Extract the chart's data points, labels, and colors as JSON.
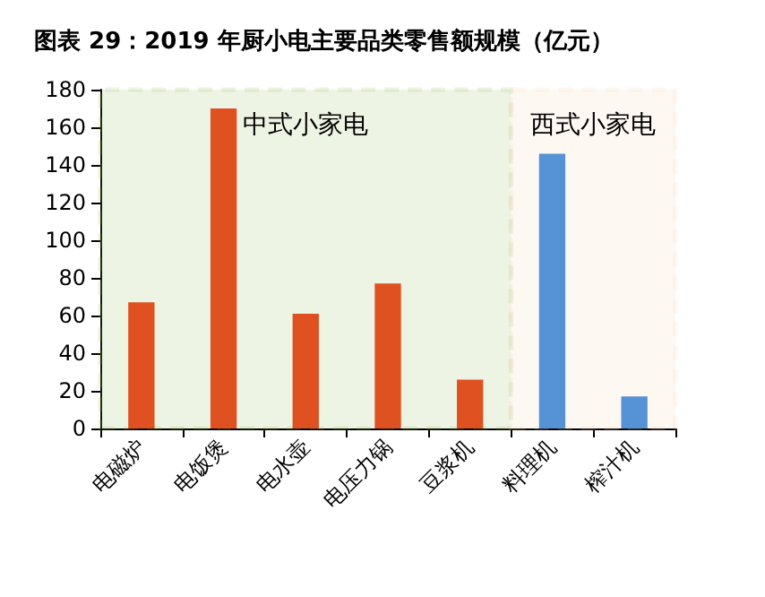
{
  "chart_data": {
    "type": "bar",
    "title": "图表 29：2019 年厨小电主要品类零售额规模（亿元）",
    "categories": [
      "电磁炉",
      "电饭煲",
      "电水壶",
      "电压力锅",
      "豆浆机",
      "料理机",
      "榨汁机"
    ],
    "values": [
      67,
      170,
      61,
      77,
      26,
      146,
      17
    ],
    "colors": [
      "#e05122",
      "#e05122",
      "#e05122",
      "#e05122",
      "#e05122",
      "#5592d6",
      "#5592d6"
    ],
    "ylim": [
      0,
      180
    ],
    "yticks": [
      0,
      20,
      40,
      60,
      80,
      100,
      120,
      140,
      160,
      180
    ],
    "grid": false,
    "bands": [
      {
        "axis": "x",
        "from": "电磁炉",
        "to": "豆浆机",
        "label": "中式小家电",
        "color": "#8db84a"
      },
      {
        "axis": "x",
        "from": "料理机",
        "to": "榨汁机",
        "label": "西式小家电",
        "color": "#f9cfb0"
      }
    ]
  }
}
